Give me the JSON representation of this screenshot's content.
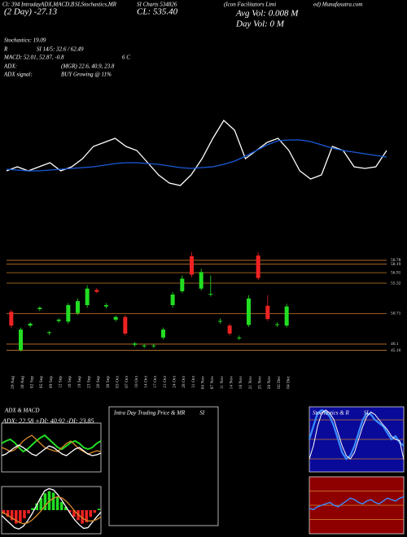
{
  "header": {
    "line1": "Cl: 394 IntradayADX,MACD,B",
    "line1b": "SI,Stochastics,MR",
    "line1c": "SI Charts 534826",
    "line1d": "(Icon Facilitators Limi",
    "line1e": "ed) Munafasutra.com",
    "line2": "(2 Day) -27.13",
    "close": "CL: 535.40",
    "avg_vol": "Avg Vol: 0.008  M",
    "day_vol": "Day Vol: 0  M",
    "stoch": "Stochastics: 19.09",
    "rsi_label": "R",
    "rsi": "SI 14/5: 32.6 / 62.49",
    "macd": "MACD: 52.01, 52.87, -0.8",
    "macd_tail": "6  C",
    "adx_label": "ADX:",
    "adx": "(MGR) 22.6, 40.9, 23.8",
    "adx_signal_label": "ADX  signal:",
    "adx_signal": "BUY Growing @ 11%"
  },
  "chart_data": [
    {
      "type": "line",
      "ylim": [
        0,
        110
      ],
      "series": [
        {
          "color": "#ffffff",
          "values": [
            30,
            35,
            30,
            35,
            40,
            30,
            35,
            45,
            60,
            65,
            70,
            60,
            55,
            40,
            25,
            15,
            12,
            25,
            45,
            70,
            92,
            80,
            45,
            55,
            65,
            70,
            55,
            30,
            20,
            25,
            60,
            55,
            35,
            33,
            35,
            55
          ]
        },
        {
          "color": "#1a5ad8",
          "values": [
            32,
            31,
            30,
            30,
            31,
            32,
            33,
            34,
            35,
            37,
            39,
            40,
            40,
            39,
            38,
            36,
            34,
            33,
            34,
            35,
            38,
            42,
            48,
            55,
            62,
            67,
            68,
            68,
            66,
            62,
            58,
            55,
            53,
            51,
            49,
            47
          ]
        }
      ]
    },
    {
      "type": "candlestick",
      "ylim": [
        44,
        60
      ],
      "yticks": [
        58.78,
        58.19,
        56.91,
        55.32,
        50.71,
        46.1,
        45.16
      ],
      "grid_color": "#c8782a",
      "up_color": "#22dd22",
      "down_color": "#ee2222",
      "categories": [
        "29 Aug",
        "30 Aug",
        "02 Sep",
        "05 Sep",
        "09 Sep",
        "12 Sep",
        "16 Sep",
        "19 Sep",
        "23 Sep",
        "26 Sep",
        "30 Sep",
        "03 Oct",
        "07 Oct",
        "10 Oct",
        "14 Oct",
        "17 Oct",
        "21 Oct",
        "24 Oct",
        "28 Oct",
        "31 Oct",
        "04 Nov",
        "07 Nov",
        "11 Nov",
        "14 Nov",
        "18 Nov",
        "21 Nov",
        "25 Nov",
        "28 Nov",
        "02 Dec",
        "04 Dec"
      ],
      "open": [
        51.0,
        45.2,
        48.9,
        51.4,
        47.8,
        49.6,
        49.5,
        50.8,
        52.0,
        54.3,
        51.8,
        49.8,
        50.2,
        46.0,
        45.8,
        45.8,
        47.1,
        52.0,
        54.1,
        59.4,
        54.5,
        53.6,
        49.5,
        48.9,
        47.0,
        49.0,
        59.5,
        51.9,
        49.0,
        48.9
      ],
      "high": [
        51.3,
        48.6,
        49.4,
        51.8,
        48.1,
        50.0,
        52.3,
        53.0,
        55.0,
        54.6,
        52.3,
        50.4,
        50.5,
        46.4,
        46.1,
        46.1,
        48.6,
        54.0,
        56.5,
        60.0,
        57.5,
        56.5,
        50.0,
        49.2,
        47.4,
        53.5,
        60.0,
        53.5,
        49.4,
        52.2
      ],
      "low": [
        48.5,
        45.0,
        48.6,
        51.1,
        47.5,
        49.3,
        49.2,
        50.5,
        51.6,
        53.8,
        51.5,
        49.5,
        47.4,
        45.7,
        45.5,
        45.5,
        46.8,
        51.6,
        53.8,
        56.2,
        54.2,
        53.3,
        49.2,
        47.4,
        46.7,
        48.7,
        55.8,
        49.6,
        48.7,
        48.6
      ],
      "close": [
        48.9,
        48.3,
        49.2,
        51.6,
        47.9,
        49.8,
        52.0,
        52.6,
        54.5,
        54.0,
        52.0,
        50.2,
        47.7,
        46.2,
        45.9,
        45.9,
        48.3,
        53.6,
        56.0,
        56.6,
        57.0,
        53.7,
        49.6,
        47.7,
        47.1,
        53.0,
        56.1,
        49.9,
        49.1,
        51.8
      ]
    },
    {
      "type": "line",
      "title": "ADX  & MACD",
      "subtitle": "ADX: 22.58  +DI: 40.92  -DI: 23.85",
      "ylim": [
        0,
        60
      ],
      "series": [
        {
          "color": "#22dd22",
          "values": [
            35,
            38,
            40,
            36,
            30,
            25,
            28,
            33,
            38,
            42,
            45,
            40,
            35,
            30,
            28,
            32,
            36,
            38,
            35,
            30,
            28,
            30,
            35,
            38
          ]
        },
        {
          "color": "#d88a2a",
          "values": [
            30,
            28,
            25,
            27,
            32,
            38,
            42,
            45,
            40,
            35,
            30,
            28,
            26,
            25,
            30,
            35,
            38,
            33,
            28,
            25,
            22,
            24,
            26,
            25
          ]
        },
        {
          "color": "#ffffff",
          "values": [
            20,
            22,
            26,
            30,
            33,
            30,
            26,
            22,
            20,
            24,
            28,
            32,
            30,
            26,
            22,
            20,
            24,
            28,
            30,
            26,
            22,
            20,
            21,
            23
          ]
        }
      ]
    },
    {
      "type": "histogram-lines",
      "ylim": [
        -3.5,
        3.5
      ],
      "up_color": "#22dd22",
      "down_color": "#ee2222",
      "values": [
        -0.5,
        -1,
        -1.5,
        -2,
        -1.8,
        -1.2,
        -0.5,
        0.3,
        1,
        1.8,
        2.5,
        2.8,
        2.6,
        2,
        1.2,
        0.5,
        -0.3,
        -1,
        -1.5,
        -2,
        -1.8,
        -1,
        -0.4,
        0.2
      ],
      "series": [
        {
          "color": "#ffffff",
          "values": [
            -0.8,
            -1.4,
            -2,
            -2.6,
            -2.8,
            -2.4,
            -1.6,
            -0.6,
            0.6,
            1.8,
            2.9,
            3.2,
            3,
            2.3,
            1.4,
            0.4,
            -0.6,
            -1.5,
            -2.2,
            -2.7,
            -2.6,
            -1.8,
            -1,
            -0.3
          ]
        },
        {
          "color": "#d88a2a",
          "values": [
            -0.3,
            -0.6,
            -1,
            -1.4,
            -1.8,
            -2,
            -1.9,
            -1.5,
            -0.9,
            -0.2,
            0.6,
            1.3,
            1.8,
            2,
            1.8,
            1.3,
            0.6,
            -0.2,
            -0.8,
            -1.3,
            -1.6,
            -1.6,
            -1.4,
            -1
          ]
        }
      ]
    },
    {
      "type": "empty",
      "title": "Intra  Day Trading Price  & MR",
      "title_tail": "SI"
    },
    {
      "type": "line",
      "title": "Stochastics & R",
      "title_tail": "SI",
      "background": "#0a0a9a",
      "ylim": [
        0,
        100
      ],
      "yticks": [
        80,
        50,
        20
      ],
      "grid_color": "#c8782a",
      "series": [
        {
          "color": "#3a8cff",
          "width": 2.2,
          "values": [
            50,
            70,
            90,
            95,
            92,
            85,
            70,
            50,
            30,
            20,
            25,
            40,
            60,
            80,
            90,
            88,
            80,
            75,
            70,
            60,
            50,
            55,
            45,
            40
          ]
        },
        {
          "color": "#ffffff",
          "width": 1,
          "values": [
            20,
            40,
            70,
            90,
            95,
            90,
            80,
            60,
            40,
            25,
            20,
            30,
            50,
            70,
            85,
            92,
            88,
            80,
            72,
            65,
            55,
            50,
            48,
            19
          ]
        }
      ]
    },
    {
      "type": "line",
      "background": "#8e0000",
      "ylim": [
        30,
        70
      ],
      "yticks": [
        60,
        50,
        40
      ],
      "grid_color": "#d88a2a",
      "series": [
        {
          "color": "#3a8cff",
          "width": 1.4,
          "values": [
            48,
            47,
            49,
            50,
            51,
            52,
            50,
            49,
            51,
            53,
            55,
            54,
            52,
            51,
            53,
            54,
            52,
            51,
            53,
            55,
            54,
            53,
            55,
            56
          ]
        }
      ]
    }
  ]
}
